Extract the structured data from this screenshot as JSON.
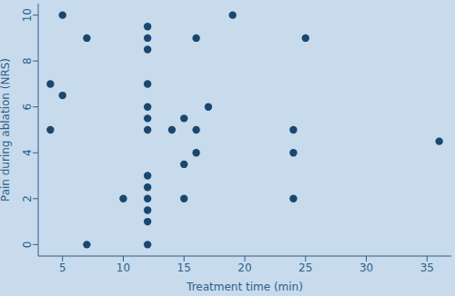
{
  "chart_data": {
    "type": "scatter",
    "x_label": "Treatment time (min)",
    "y_label": "Pain during ablation (NRS)",
    "x": [
      5,
      19,
      12,
      7,
      12,
      16,
      25,
      12,
      4,
      12,
      5,
      12,
      17,
      12,
      15,
      4,
      12,
      14,
      16,
      24,
      36,
      16,
      24,
      15,
      12,
      12,
      10,
      12,
      15,
      24,
      12,
      12,
      7,
      12
    ],
    "values": [
      10,
      10,
      9.5,
      9,
      9,
      9,
      9,
      8.5,
      7,
      7,
      6.5,
      6,
      6,
      5.5,
      5.5,
      5,
      5,
      5,
      5,
      5,
      4.5,
      4,
      4,
      3.5,
      3,
      2.5,
      2,
      2,
      2,
      2,
      1.5,
      1,
      0,
      0
    ],
    "color": "#1a476f",
    "marker": "circle",
    "xlim": [
      3,
      37
    ],
    "xticks": [
      5,
      10,
      15,
      20,
      25,
      30,
      35
    ],
    "ylim": [
      -0.5,
      10.5
    ],
    "yticks": [
      0,
      2,
      4,
      6,
      8,
      10
    ],
    "grid": false
  }
}
